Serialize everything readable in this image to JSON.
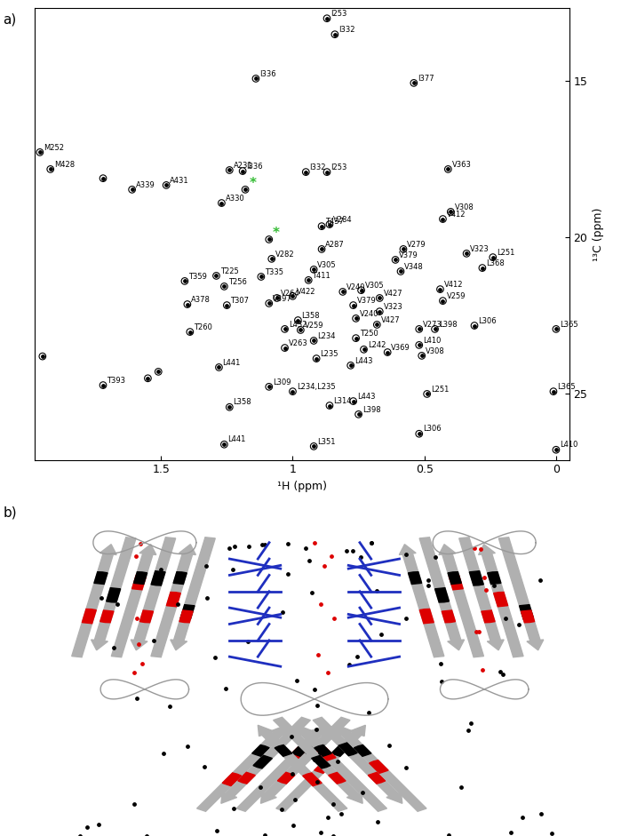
{
  "panel_labels": [
    "a)",
    "b)"
  ],
  "chart_data": {
    "type": "scatter",
    "x_label": "¹H (ppm)",
    "y_label": "¹³C (ppm)",
    "xlim": [
      1.98,
      -0.05
    ],
    "ylim": [
      27.1,
      12.7
    ],
    "xticks": [
      1.5,
      1,
      0.5,
      0
    ],
    "yticks": [
      15,
      20,
      25
    ],
    "x": [
      0.87,
      0.84,
      1.14,
      0.54,
      1.96,
      1.92,
      1.24,
      1.19,
      1.18,
      0.95,
      0.87,
      0.41,
      1.48,
      1.61,
      1.27,
      0.89,
      0.86,
      0.4,
      0.43,
      1.09,
      0.89,
      1.08,
      0.58,
      0.34,
      0.24,
      0.61,
      0.28,
      0.59,
      0.92,
      1.29,
      1.12,
      1.41,
      1.26,
      0.94,
      0.74,
      0.81,
      0.44,
      1.06,
      1.0,
      1.09,
      1.4,
      1.25,
      0.67,
      0.43,
      0.77,
      0.67,
      0.98,
      0.76,
      0.68,
      0.52,
      0.46,
      0.31,
      1.39,
      1.03,
      0.97,
      1.03,
      0.92,
      0.76,
      0.91,
      0.73,
      0.52,
      0.64,
      0.51,
      1.28,
      0.78,
      0.0,
      1.72,
      1.09,
      1.0,
      0.49,
      0.01,
      0.77,
      1.24,
      0.86,
      0.75,
      0.52,
      1.26,
      0.92,
      0.0,
      1.72,
      1.95,
      1.51,
      1.55
    ],
    "values": [
      13.02,
      13.53,
      14.94,
      15.08,
      17.29,
      17.83,
      17.86,
      17.89,
      18.48,
      17.92,
      17.92,
      17.83,
      18.34,
      18.48,
      18.91,
      19.65,
      19.59,
      19.19,
      19.42,
      20.07,
      20.38,
      20.69,
      20.38,
      20.52,
      20.64,
      20.72,
      20.98,
      21.09,
      21.03,
      21.23,
      21.26,
      21.4,
      21.57,
      21.37,
      21.69,
      21.74,
      21.66,
      21.94,
      21.88,
      22.11,
      22.14,
      22.17,
      21.94,
      22.03,
      22.17,
      22.37,
      22.65,
      22.59,
      22.79,
      22.93,
      22.93,
      22.82,
      23.02,
      22.93,
      22.96,
      23.53,
      23.3,
      23.22,
      23.87,
      23.58,
      23.44,
      23.67,
      23.78,
      24.15,
      24.09,
      22.93,
      24.72,
      24.77,
      24.92,
      25.0,
      24.92,
      25.23,
      25.42,
      25.37,
      25.65,
      26.27,
      26.61,
      26.67,
      26.78,
      18.12,
      23.8,
      24.29,
      24.5
    ],
    "labels": [
      "I253",
      "I332",
      "I336",
      "I377",
      "M252",
      "M428",
      "A231",
      "I336",
      "*",
      "I332",
      "I253",
      "V363",
      "A431",
      "A339",
      "A330",
      "T437",
      "V284",
      "V308",
      "V412",
      "*",
      "A287",
      "V282",
      "V279",
      "V323",
      "L251",
      "V379",
      "L368",
      "V348",
      "V305",
      "T225",
      "T335",
      "T359",
      "T256",
      "T411",
      "V305",
      "V240",
      "V412",
      "V264",
      "V422",
      "V397",
      "A378",
      "T307",
      "V427",
      "V259",
      "V379",
      "V323",
      "L358",
      "V240",
      "V427",
      "V273",
      "L398",
      "L306",
      "T260",
      "L432",
      "V259",
      "V263",
      "L234",
      "T250",
      "L235",
      "L242",
      "L410",
      "V369",
      "V308",
      "L441",
      "L443",
      "L365",
      "T393",
      "L309",
      "L234,L235",
      "L251",
      "L365",
      "L443",
      "L358",
      "L314",
      "L398",
      "L306",
      "L441",
      "L351",
      "L410",
      null,
      null,
      null,
      null
    ],
    "colors": [
      "#000000",
      "#000000",
      "#000000",
      "#000000",
      "#000000",
      "#000000",
      "#000000",
      "#000000",
      "#33bb33",
      "#000000",
      "#000000",
      "#000000",
      "#000000",
      "#000000",
      "#000000",
      "#000000",
      "#000000",
      "#000000",
      "#000000",
      "#33bb33",
      "#000000",
      "#000000",
      "#000000",
      "#000000",
      "#000000",
      "#000000",
      "#000000",
      "#000000",
      "#000000",
      "#000000",
      "#000000",
      "#000000",
      "#000000",
      "#000000",
      "#000000",
      "#000000",
      "#000000",
      "#000000",
      "#000000",
      "#000000",
      "#000000",
      "#000000",
      "#000000",
      "#000000",
      "#000000",
      "#000000",
      "#000000",
      "#000000",
      "#000000",
      "#000000",
      "#000000",
      "#000000",
      "#000000",
      "#000000",
      "#000000",
      "#000000",
      "#000000",
      "#000000",
      "#000000",
      "#000000",
      "#000000",
      "#000000",
      "#000000",
      "#000000",
      "#000000",
      "#000000",
      "#000000",
      "#000000",
      "#000000",
      "#000000",
      "#000000",
      "#000000",
      "#000000",
      "#000000",
      "#000000",
      "#000000",
      "#000000",
      "#000000",
      "#000000",
      "#000000",
      "#000000",
      "#000000",
      "#000000"
    ],
    "marker": "o"
  }
}
